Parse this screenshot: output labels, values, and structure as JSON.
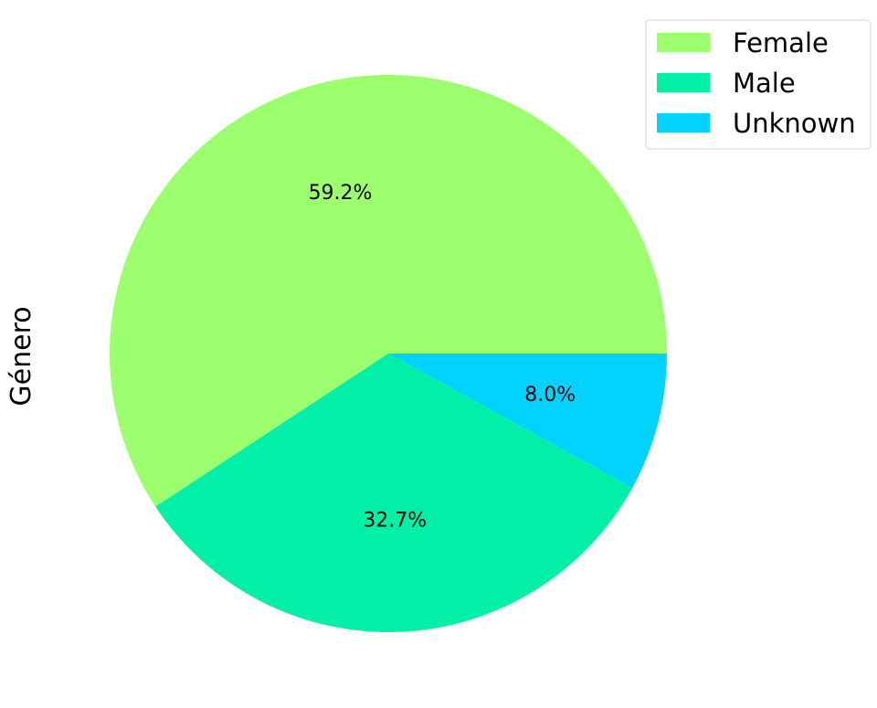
{
  "chart_data": {
    "type": "pie",
    "ylabel": "Género",
    "legend_position": "top-right",
    "slices": [
      {
        "label": "Female",
        "value": 59.2,
        "pct_label": "59.2%",
        "color": "#9bff6e"
      },
      {
        "label": "Male",
        "value": 32.7,
        "pct_label": "32.7%",
        "color": "#02efa8"
      },
      {
        "label": "Unknown",
        "value": 8.0,
        "pct_label": "8.0%",
        "color": "#02d2ff"
      }
    ]
  }
}
